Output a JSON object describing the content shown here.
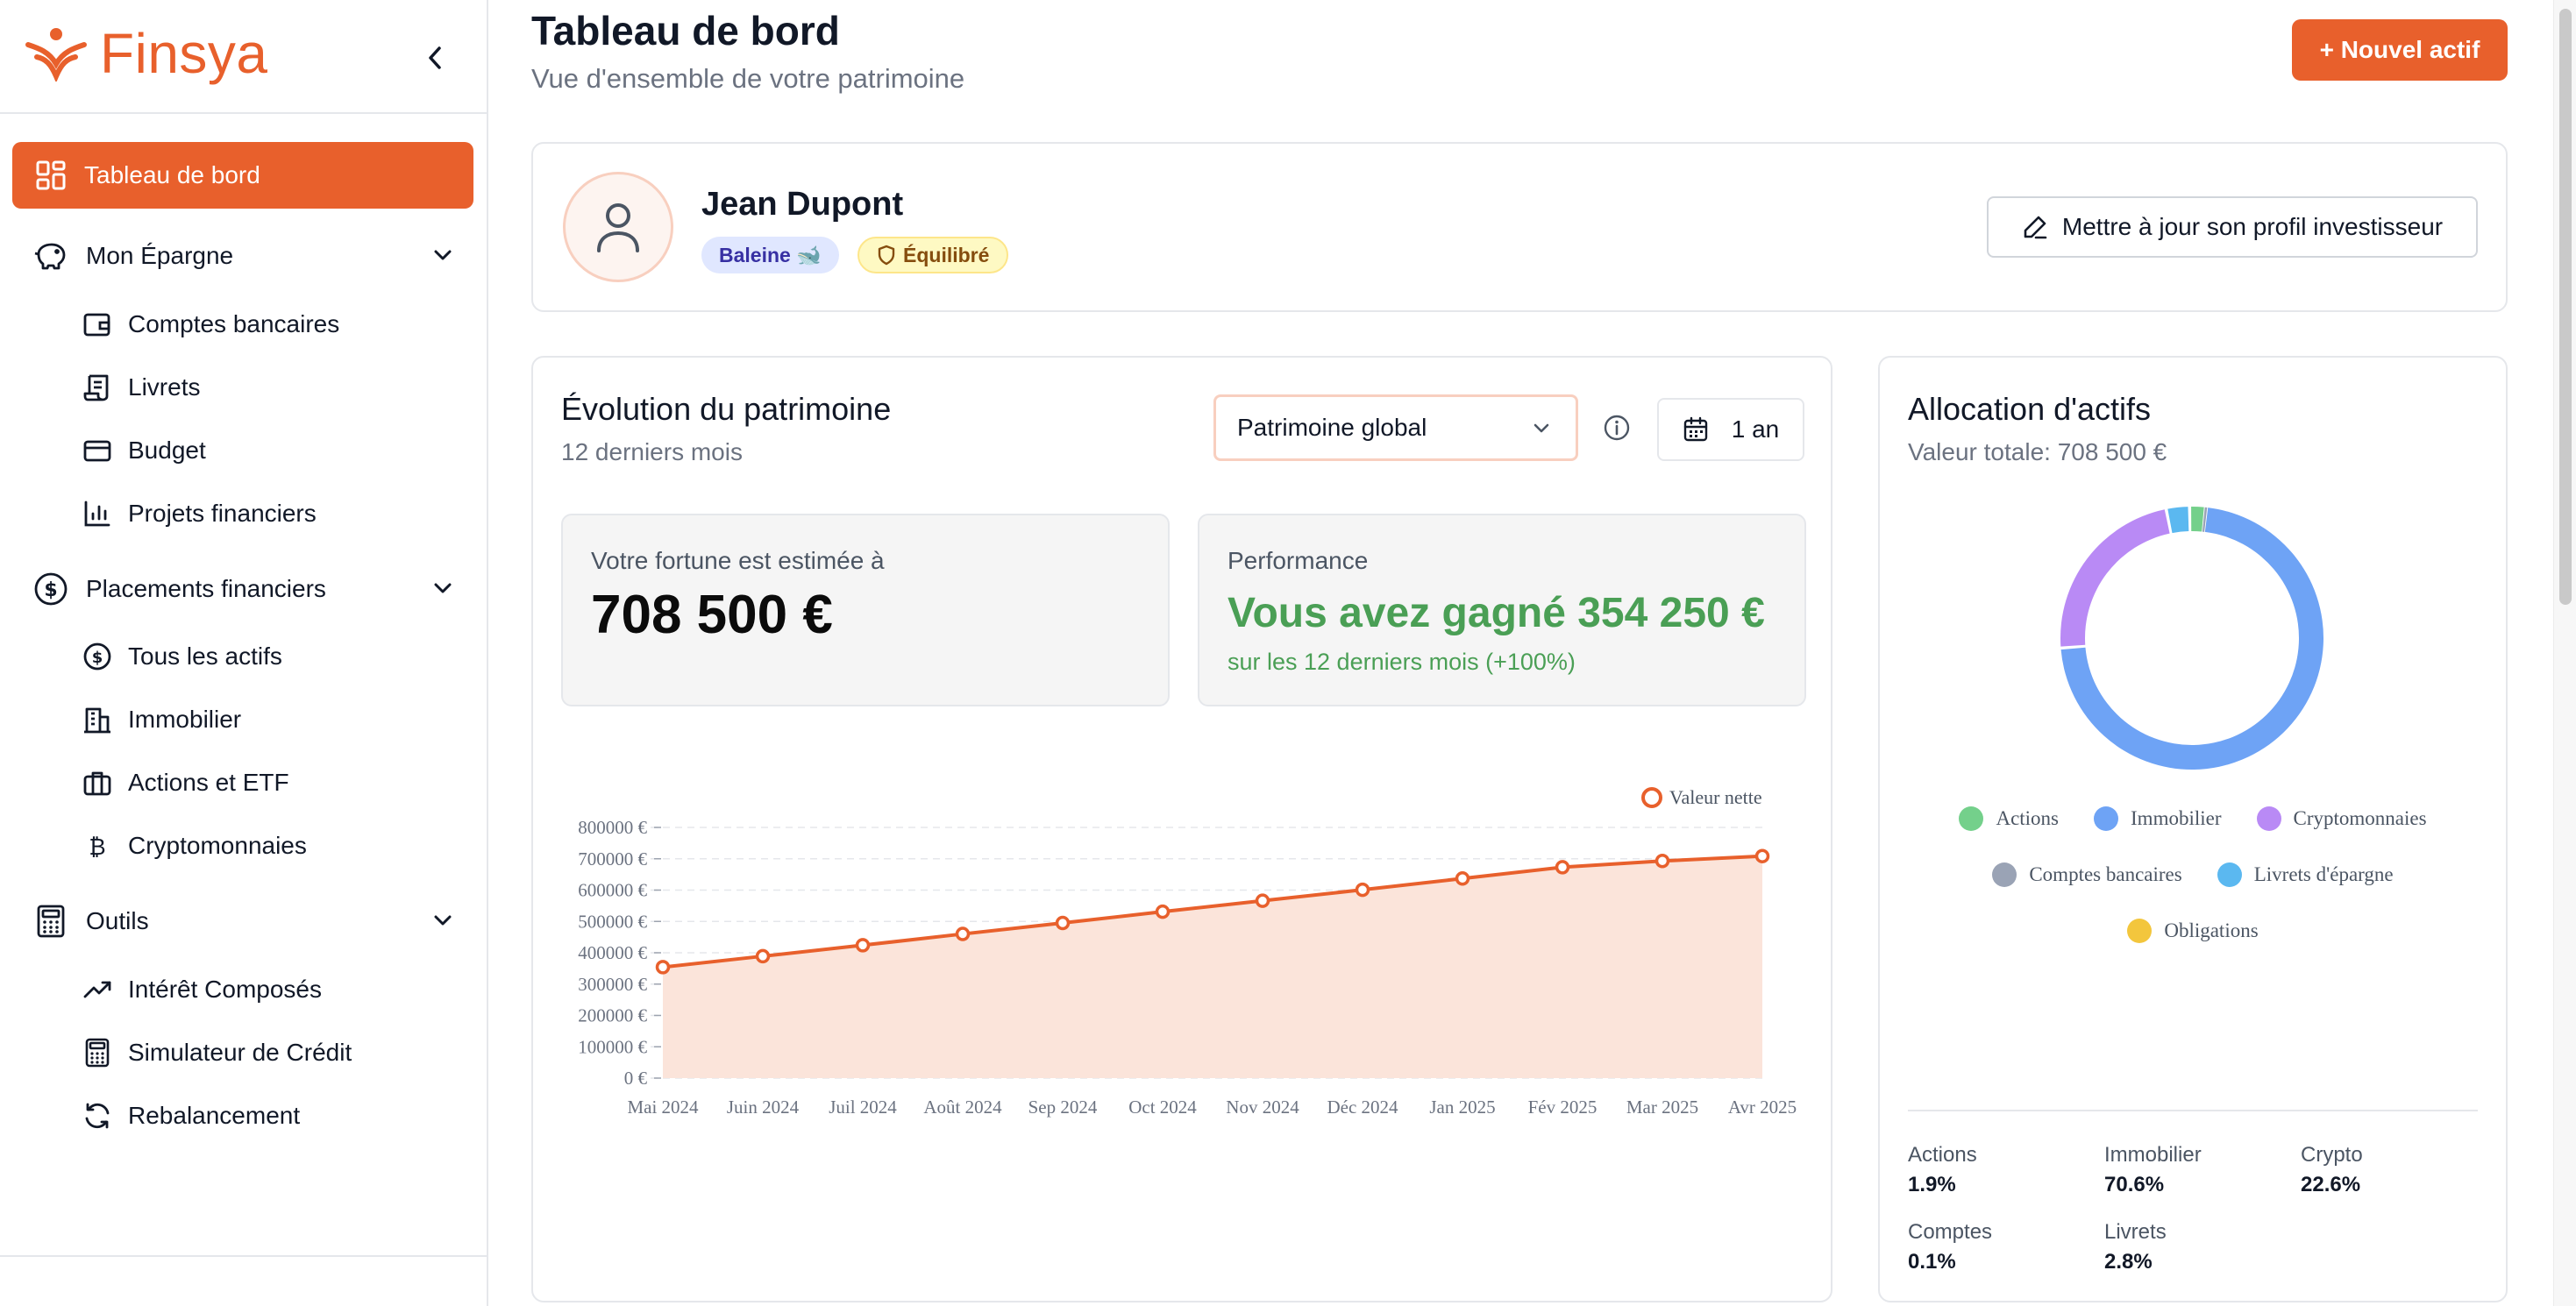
{
  "brand": {
    "name": "Finsya",
    "accent": "#e8602c"
  },
  "sidebar": {
    "active": {
      "label": "Tableau de bord",
      "icon": "grid-icon"
    },
    "groups": [
      {
        "label": "Mon Épargne",
        "icon": "piggy-bank-icon",
        "items": [
          {
            "label": "Comptes bancaires",
            "icon": "wallet-icon"
          },
          {
            "label": "Livrets",
            "icon": "scroll-icon"
          },
          {
            "label": "Budget",
            "icon": "credit-card-icon"
          },
          {
            "label": "Projets financiers",
            "icon": "bar-chart-icon"
          }
        ]
      },
      {
        "label": "Placements financiers",
        "icon": "dollar-circle-icon",
        "items": [
          {
            "label": "Tous les actifs",
            "icon": "dollar-circle-icon"
          },
          {
            "label": "Immobilier",
            "icon": "building-icon"
          },
          {
            "label": "Actions et ETF",
            "icon": "briefcase-icon"
          },
          {
            "label": "Cryptomonnaies",
            "icon": "bitcoin-icon"
          }
        ]
      },
      {
        "label": "Outils",
        "icon": "calculator-icon",
        "items": [
          {
            "label": "Intérêt Composés",
            "icon": "trending-up-icon"
          },
          {
            "label": "Simulateur de Crédit",
            "icon": "calculator-icon"
          },
          {
            "label": "Rebalancement",
            "icon": "refresh-icon"
          }
        ]
      }
    ]
  },
  "header": {
    "title": "Tableau de bord",
    "subtitle": "Vue d'ensemble de votre patrimoine",
    "new_button": "+ Nouvel actif"
  },
  "profile": {
    "name": "Jean Dupont",
    "badge_type": "Baleine 🐋",
    "badge_risk": "Équilibré",
    "update_button": "Mettre à jour son profil investisseur"
  },
  "evolution": {
    "title": "Évolution du patrimoine",
    "subtitle": "12 derniers mois",
    "select_value": "Patrimoine global",
    "period": "1 an",
    "fortune_label": "Votre fortune est estimée à",
    "fortune_value": "708 500 €",
    "perf_label": "Performance",
    "perf_value": "Vous avez gagné 354 250 €",
    "perf_sub": "sur les 12 derniers mois (+100%)"
  },
  "allocation": {
    "title": "Allocation d'actifs",
    "subtitle": "Valeur totale: 708 500 €",
    "legend": [
      {
        "label": "Actions",
        "color": "#74d08b"
      },
      {
        "label": "Immobilier",
        "color": "#6ea3f5"
      },
      {
        "label": "Cryptomonnaies",
        "color": "#b98af5"
      },
      {
        "label": "Comptes bancaires",
        "color": "#9aa3b5"
      },
      {
        "label": "Livrets d'épargne",
        "color": "#5bb8f0"
      },
      {
        "label": "Obligations",
        "color": "#f3c63d"
      }
    ],
    "summary": [
      {
        "label": "Actions",
        "value": "1.9%"
      },
      {
        "label": "Immobilier",
        "value": "70.6%"
      },
      {
        "label": "Crypto",
        "value": "22.6%"
      },
      {
        "label": "Comptes",
        "value": "0.1%"
      },
      {
        "label": "Livrets",
        "value": "2.8%"
      }
    ]
  },
  "chart_data": [
    {
      "type": "area",
      "legend": "Valeur nette",
      "legend_position": "top-right",
      "color": "#e8602c",
      "categories": [
        "Mai 2024",
        "Juin 2024",
        "Juil 2024",
        "Août 2024",
        "Sep 2024",
        "Oct 2024",
        "Nov 2024",
        "Déc 2024",
        "Jan 2025",
        "Fév 2025",
        "Mar 2025",
        "Avr 2025"
      ],
      "series": [
        {
          "name": "Valeur nette",
          "values": [
            354250,
            389000,
            424000,
            460000,
            495000,
            531000,
            566000,
            601000,
            637000,
            673000,
            693000,
            708500
          ]
        }
      ],
      "yticks": [
        "0 €",
        "100000 €",
        "200000 €",
        "300000 €",
        "400000 €",
        "500000 €",
        "600000 €",
        "700000 €",
        "800000 €"
      ],
      "ylim": [
        0,
        800000
      ],
      "grid": true
    },
    {
      "type": "pie",
      "donut": true,
      "labels": [
        "Actions",
        "Immobilier",
        "Cryptomonnaies",
        "Comptes bancaires",
        "Livrets d'épargne",
        "Obligations"
      ],
      "values": [
        1.9,
        70.6,
        22.6,
        0.1,
        2.8,
        0.0
      ],
      "colors": [
        "#74d08b",
        "#6ea3f5",
        "#b98af5",
        "#9aa3b5",
        "#5bb8f0",
        "#f3c63d"
      ]
    }
  ]
}
